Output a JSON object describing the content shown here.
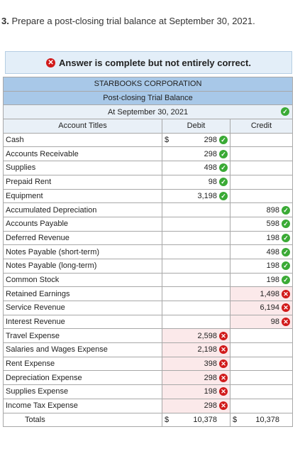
{
  "question": {
    "number": "3.",
    "text": "Prepare a post-closing trial balance at September 30, 2021."
  },
  "banner": {
    "text": "Answer is complete but not entirely correct."
  },
  "table": {
    "company": "STARBOOKS CORPORATION",
    "title": "Post-closing Trial Balance",
    "date": "At September 30, 2021",
    "col_account": "Account Titles",
    "col_debit": "Debit",
    "col_credit": "Credit",
    "dollar_sign": "$",
    "rows": [
      {
        "account": "Cash",
        "debit": "298",
        "debit_status": "correct",
        "credit": "",
        "credit_status": "",
        "debit_dollar": true
      },
      {
        "account": "Accounts Receivable",
        "debit": "298",
        "debit_status": "correct",
        "credit": "",
        "credit_status": ""
      },
      {
        "account": "Supplies",
        "debit": "498",
        "debit_status": "correct",
        "credit": "",
        "credit_status": ""
      },
      {
        "account": "Prepaid Rent",
        "debit": "98",
        "debit_status": "correct",
        "credit": "",
        "credit_status": ""
      },
      {
        "account": "Equipment",
        "debit": "3,198",
        "debit_status": "correct",
        "credit": "",
        "credit_status": ""
      },
      {
        "account": "Accumulated Depreciation",
        "debit": "",
        "debit_status": "",
        "credit": "898",
        "credit_status": "correct"
      },
      {
        "account": "Accounts Payable",
        "debit": "",
        "debit_status": "",
        "credit": "598",
        "credit_status": "correct"
      },
      {
        "account": "Deferred Revenue",
        "debit": "",
        "debit_status": "",
        "credit": "198",
        "credit_status": "correct"
      },
      {
        "account": "Notes Payable (short-term)",
        "debit": "",
        "debit_status": "",
        "credit": "498",
        "credit_status": "correct"
      },
      {
        "account": "Notes Payable (long-term)",
        "debit": "",
        "debit_status": "",
        "credit": "198",
        "credit_status": "correct"
      },
      {
        "account": "Common Stock",
        "debit": "",
        "debit_status": "",
        "credit": "198",
        "credit_status": "correct"
      },
      {
        "account": "Retained Earnings",
        "debit": "",
        "debit_status": "",
        "credit": "1,498",
        "credit_status": "wrong"
      },
      {
        "account": "Service Revenue",
        "debit": "",
        "debit_status": "",
        "credit": "6,194",
        "credit_status": "wrong"
      },
      {
        "account": "Interest Revenue",
        "debit": "",
        "debit_status": "",
        "credit": "98",
        "credit_status": "wrong"
      },
      {
        "account": "Travel Expense",
        "debit": "2,598",
        "debit_status": "wrong",
        "credit": "",
        "credit_status": ""
      },
      {
        "account": "Salaries and Wages Expense",
        "debit": "2,198",
        "debit_status": "wrong",
        "credit": "",
        "credit_status": ""
      },
      {
        "account": "Rent Expense",
        "debit": "398",
        "debit_status": "wrong",
        "credit": "",
        "credit_status": ""
      },
      {
        "account": "Depreciation Expense",
        "debit": "298",
        "debit_status": "wrong",
        "credit": "",
        "credit_status": ""
      },
      {
        "account": "Supplies Expense",
        "debit": "198",
        "debit_status": "wrong",
        "credit": "",
        "credit_status": ""
      },
      {
        "account": "Income Tax Expense",
        "debit": "298",
        "debit_status": "wrong",
        "credit": "",
        "credit_status": ""
      }
    ],
    "totals": {
      "label": "Totals",
      "debit": "10,378",
      "credit": "10,378"
    }
  },
  "colors": {
    "header_bg": "#a8c8e8",
    "correct": "#3aaa35",
    "wrong": "#d11a1a",
    "wrong_cell_bg": "#fbe9ea"
  },
  "icons": {
    "correct": "check-circle-icon",
    "wrong": "x-circle-icon"
  }
}
